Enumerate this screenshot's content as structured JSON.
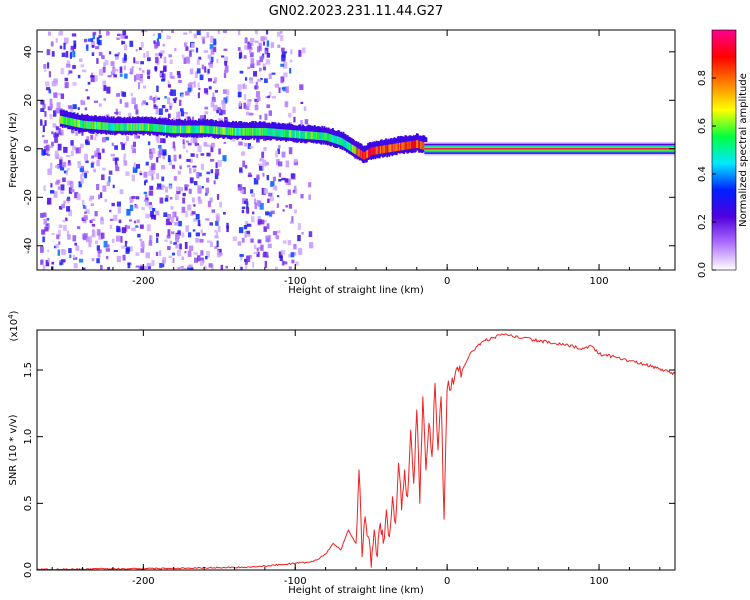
{
  "title": "GN02.2023.231.11.44.G27",
  "chart_data": [
    {
      "type": "heatmap",
      "xlabel": "Height of straight line (km)",
      "ylabel": "Frequency (Hz)",
      "xlim": [
        -270,
        150
      ],
      "ylim": [
        -50,
        49
      ],
      "x_ticks": [
        -200,
        -100,
        0,
        100
      ],
      "x_tick_labels": [
        "-200",
        "-100",
        "0",
        "100"
      ],
      "y_ticks": [
        -40,
        -20,
        0,
        20,
        40
      ],
      "y_tick_labels": [
        "-40",
        "-20",
        "0",
        "20",
        "40"
      ],
      "colorbar": {
        "label": "Normalized spectral amplitude",
        "range": [
          0,
          1
        ],
        "ticks": [
          0.0,
          0.2,
          0.4,
          0.6,
          0.8
        ],
        "tick_labels": [
          "0.0",
          "0.2",
          "0.4",
          "0.6",
          "0.8"
        ],
        "colormap": [
          "#ffffff",
          "#b070ff",
          "#5000dd",
          "#0020ff",
          "#00e8ff",
          "#00ff40",
          "#ffff00",
          "#ff8000",
          "#ff0000",
          "#ff0090"
        ]
      },
      "doppler_track": {
        "x": [
          -255,
          -240,
          -220,
          -200,
          -180,
          -160,
          -140,
          -120,
          -100,
          -80,
          -70,
          -60,
          -55,
          -50,
          -40,
          -30,
          -20,
          -15,
          0,
          50,
          100,
          150
        ],
        "freq_hz": [
          12,
          10,
          9,
          9,
          8,
          8,
          7,
          7,
          6,
          5,
          3,
          -1,
          -3,
          -1,
          0,
          1,
          2,
          1,
          0,
          0,
          0,
          0
        ]
      },
      "grid": false
    },
    {
      "type": "line",
      "xlabel": "Height of straight line (km)",
      "ylabel": "SNR (10 * v/v)",
      "multiplier_label": "(x10",
      "multiplier_exp": "4",
      "multiplier_close": ")",
      "xlim": [
        -270,
        150
      ],
      "ylim": [
        0,
        1.8
      ],
      "x_ticks": [
        -200,
        -100,
        0,
        100
      ],
      "x_tick_labels": [
        "-200",
        "-100",
        "0",
        "100"
      ],
      "y_ticks": [
        0.0,
        0.5,
        1.0,
        1.5
      ],
      "y_tick_labels": [
        "0.0",
        "0.5",
        "1.0",
        "1.5"
      ],
      "series": [
        {
          "color": "#ee2222",
          "x": [
            -270,
            -250,
            -230,
            -210,
            -190,
            -170,
            -150,
            -130,
            -120,
            -110,
            -100,
            -90,
            -85,
            -80,
            -75,
            -70,
            -65,
            -60,
            -58,
            -56,
            -54,
            -52,
            -50,
            -48,
            -46,
            -44,
            -42,
            -40,
            -38,
            -36,
            -34,
            -32,
            -30,
            -28,
            -26,
            -24,
            -22,
            -20,
            -18,
            -16,
            -14,
            -12,
            -10,
            -8,
            -6,
            -4,
            -2,
            0,
            5,
            10,
            15,
            20,
            25,
            30,
            35,
            40,
            50,
            60,
            70,
            80,
            90,
            95,
            100,
            110,
            120,
            130,
            140,
            150
          ],
          "y": [
            0.005,
            0.006,
            0.008,
            0.01,
            0.012,
            0.015,
            0.018,
            0.022,
            0.03,
            0.04,
            0.05,
            0.06,
            0.08,
            0.12,
            0.2,
            0.15,
            0.3,
            0.2,
            0.75,
            0.1,
            0.4,
            0.25,
            0.02,
            0.3,
            0.1,
            0.35,
            0.2,
            0.45,
            0.25,
            0.55,
            0.35,
            0.8,
            0.45,
            0.75,
            0.55,
            1.05,
            0.65,
            1.2,
            0.5,
            1.3,
            0.75,
            1.1,
            0.85,
            1.4,
            0.9,
            1.3,
            0.38,
            1.35,
            1.45,
            1.5,
            1.62,
            1.68,
            1.72,
            1.74,
            1.76,
            1.76,
            1.74,
            1.72,
            1.7,
            1.68,
            1.66,
            1.68,
            1.62,
            1.6,
            1.57,
            1.54,
            1.51,
            1.47
          ]
        }
      ],
      "grid": false
    }
  ]
}
